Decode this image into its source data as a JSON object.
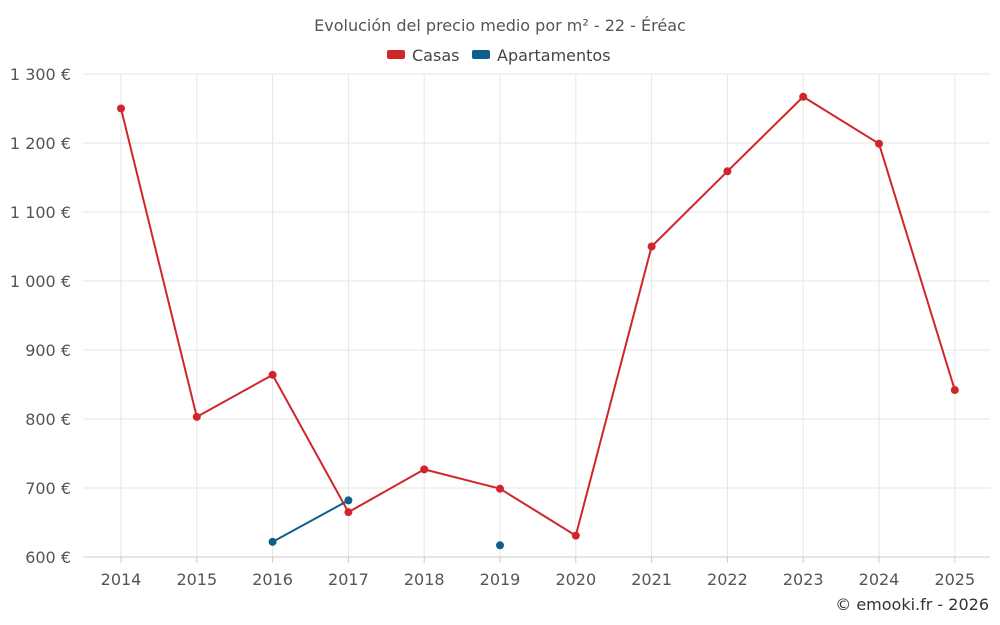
{
  "chart_data": {
    "type": "line",
    "title": "Evolución del precio medio por m² - 22 - Éréac",
    "x": [
      "2014",
      "2015",
      "2016",
      "2017",
      "2018",
      "2019",
      "2020",
      "2021",
      "2022",
      "2023",
      "2024",
      "2025"
    ],
    "ylim": [
      600,
      1300
    ],
    "yticks": [
      600,
      700,
      800,
      900,
      1000,
      1100,
      1200,
      1300
    ],
    "ytick_labels": [
      "600 €",
      "700 €",
      "800 €",
      "900 €",
      "1 000 €",
      "1 100 €",
      "1 200 €",
      "1 300 €"
    ],
    "grid": true,
    "legend_position": "top-center",
    "series": [
      {
        "name": "Casas",
        "color": "#d0262b",
        "values": [
          1250,
          803,
          864,
          665,
          727,
          699,
          631,
          1050,
          1159,
          1267,
          1199,
          842
        ]
      },
      {
        "name": "Apartamentos",
        "color": "#0f5f8e",
        "values": [
          null,
          null,
          622,
          682,
          null,
          617,
          null,
          null,
          null,
          null,
          null,
          null
        ]
      }
    ]
  },
  "credit": "© emooki.fr - 2026"
}
